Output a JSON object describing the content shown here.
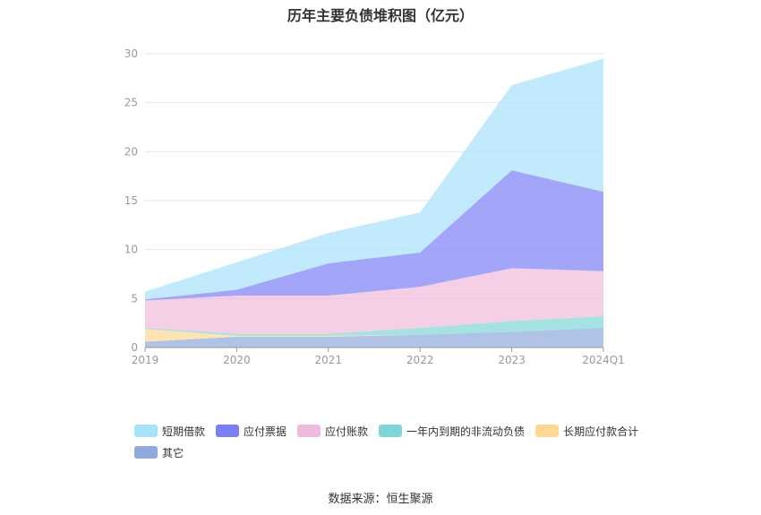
{
  "chart_data": {
    "type": "area",
    "stacked": true,
    "title": "历年主要负债堆积图（亿元）",
    "categories": [
      "2019",
      "2020",
      "2021",
      "2022",
      "2023",
      "2024Q1"
    ],
    "ylim": [
      0,
      30
    ],
    "yticks": [
      0,
      5,
      10,
      15,
      20,
      25,
      30
    ],
    "grid": true,
    "legend_position": "bottom",
    "series": [
      {
        "name": "其它",
        "color": "#8faadc",
        "values": [
          0.6,
          1.1,
          1.1,
          1.3,
          1.6,
          2.0
        ]
      },
      {
        "name": "长期应付款合计",
        "color": "#ffd993",
        "values": [
          1.3,
          0.1,
          0.1,
          0.0,
          0.0,
          0.0
        ]
      },
      {
        "name": "一年内到期的非流动负债",
        "color": "#7fd6d6",
        "values": [
          0.1,
          0.2,
          0.2,
          0.7,
          1.1,
          1.2
        ]
      },
      {
        "name": "应付账款",
        "color": "#efbbdc",
        "values": [
          2.8,
          3.9,
          3.9,
          4.2,
          5.4,
          4.6
        ]
      },
      {
        "name": "应付票据",
        "color": "#7b7ff5",
        "values": [
          0.1,
          0.6,
          3.3,
          3.5,
          10.0,
          8.1
        ]
      },
      {
        "name": "短期借款",
        "color": "#a6e3fb",
        "values": [
          0.8,
          2.8,
          3.1,
          4.1,
          8.7,
          13.6
        ]
      }
    ],
    "legend_order": [
      "短期借款",
      "应付票据",
      "应付账款",
      "一年内到期的非流动负债",
      "长期应付款合计",
      "其它"
    ]
  },
  "footer": {
    "source": "数据来源：恒生聚源"
  }
}
